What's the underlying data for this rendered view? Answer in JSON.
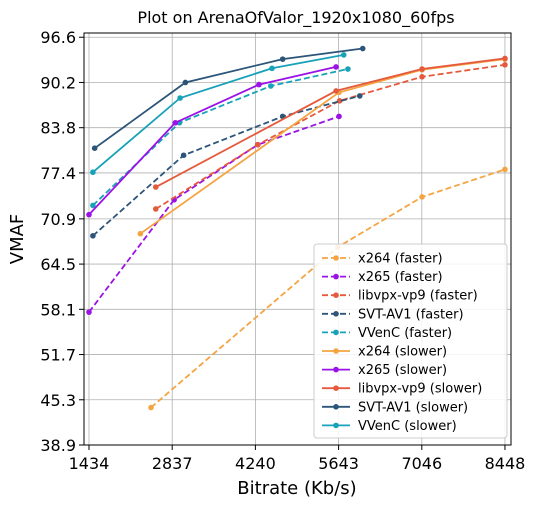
{
  "chart_data": {
    "type": "line",
    "title": "Plot on ArenaOfValor_1920x1080_60fps",
    "xlabel": "Bitrate (Kb/s)",
    "ylabel": "VMAF",
    "xlim": [
      1350,
      8550
    ],
    "ylim": [
      38.9,
      97.2
    ],
    "xticks": [
      1434,
      2837,
      4240,
      5643,
      7046,
      8448
    ],
    "xtick_labels": [
      "1434",
      "2837",
      "4240",
      "5643",
      "7046",
      "8448"
    ],
    "yticks": [
      38.9,
      45.3,
      51.7,
      58.1,
      64.5,
      70.9,
      77.4,
      83.8,
      90.2,
      96.6
    ],
    "ytick_labels": [
      "38.9",
      "45.3",
      "51.7",
      "58.1",
      "64.5",
      "70.9",
      "77.4",
      "83.8",
      "90.2",
      "96.6"
    ],
    "grid": true,
    "legend_position": "bottom-right",
    "series": [
      {
        "name": "x264 (faster)",
        "color": "#f5a442",
        "dash": true,
        "points": [
          [
            2480,
            44.2
          ],
          [
            5630,
            66.9
          ],
          [
            7050,
            74.0
          ],
          [
            8448,
            77.9
          ]
        ]
      },
      {
        "name": "x265 (faster)",
        "color": "#9b12e6",
        "dash": true,
        "points": [
          [
            1434,
            57.7
          ],
          [
            2870,
            73.6
          ],
          [
            4280,
            81.4
          ],
          [
            5650,
            85.4
          ]
        ]
      },
      {
        "name": "libvpx-vp9 (faster)",
        "color": "#e55a3c",
        "dash": true,
        "points": [
          [
            2560,
            72.3
          ],
          [
            4280,
            81.4
          ],
          [
            5660,
            87.6
          ],
          [
            7050,
            91.0
          ],
          [
            8448,
            92.7
          ]
        ]
      },
      {
        "name": "SVT-AV1 (faster)",
        "color": "#2c5579",
        "dash": true,
        "points": [
          [
            1500,
            68.5
          ],
          [
            3030,
            79.9
          ],
          [
            4700,
            85.4
          ],
          [
            6000,
            88.3
          ]
        ]
      },
      {
        "name": "VVenC (faster)",
        "color": "#17a2b8",
        "dash": true,
        "points": [
          [
            1500,
            72.8
          ],
          [
            2960,
            84.5
          ],
          [
            4500,
            89.7
          ],
          [
            5800,
            92.1
          ]
        ]
      },
      {
        "name": "x264 (slower)",
        "color": "#f5a442",
        "dash": false,
        "points": [
          [
            2300,
            68.8
          ],
          [
            5650,
            88.8
          ],
          [
            7050,
            92.0
          ],
          [
            8448,
            93.5
          ]
        ]
      },
      {
        "name": "x265 (slower)",
        "color": "#9b12e6",
        "dash": false,
        "points": [
          [
            1434,
            71.5
          ],
          [
            2890,
            84.5
          ],
          [
            4300,
            89.9
          ],
          [
            5600,
            92.4
          ]
        ]
      },
      {
        "name": "libvpx-vp9 (slower)",
        "color": "#e55a3c",
        "dash": false,
        "points": [
          [
            2560,
            75.4
          ],
          [
            5600,
            89.0
          ],
          [
            7050,
            92.1
          ],
          [
            8448,
            93.6
          ]
        ]
      },
      {
        "name": "SVT-AV1 (slower)",
        "color": "#2c5579",
        "dash": false,
        "points": [
          [
            1530,
            80.9
          ],
          [
            3060,
            90.2
          ],
          [
            4700,
            93.5
          ],
          [
            6050,
            95.0
          ]
        ]
      },
      {
        "name": "VVenC (slower)",
        "color": "#17a2b8",
        "dash": false,
        "points": [
          [
            1500,
            77.5
          ],
          [
            2970,
            88.0
          ],
          [
            4520,
            92.2
          ],
          [
            5730,
            94.1
          ]
        ]
      }
    ]
  }
}
